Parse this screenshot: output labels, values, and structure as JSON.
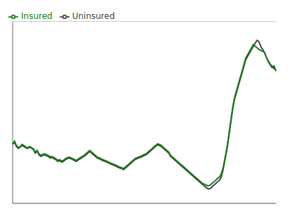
{
  "chart_data": {
    "type": "line",
    "ylim": [
      1.5,
      7.0
    ],
    "yticks": [
      1.5,
      2.2857142857142856,
      3.0714285714285716,
      3.857142857142857,
      4.642857142857143,
      5.428571428571429,
      6.214285714285714,
      7.0
    ],
    "grid": true,
    "legend": "upper left",
    "tick_labels": false,
    "series": [
      {
        "name": "Uninsured",
        "color": "#444444",
        "line_style": "solid",
        "values": [
          3.28,
          3.35,
          3.22,
          3.16,
          3.2,
          3.25,
          3.22,
          3.18,
          3.16,
          3.2,
          3.17,
          3.13,
          3.02,
          3.08,
          2.97,
          2.92,
          2.95,
          2.97,
          2.94,
          2.92,
          2.87,
          2.89,
          2.85,
          2.82,
          2.77,
          2.79,
          2.75,
          2.77,
          2.82,
          2.85,
          2.87,
          2.85,
          2.82,
          2.79,
          2.77,
          2.82,
          2.85,
          2.89,
          2.92,
          2.97,
          3.02,
          3.07,
          3.02,
          2.97,
          2.92,
          2.87,
          2.85,
          2.82,
          2.79,
          2.77,
          2.75,
          2.72,
          2.69,
          2.67,
          2.65,
          2.62,
          2.59,
          2.57,
          2.55,
          2.52,
          2.57,
          2.62,
          2.67,
          2.72,
          2.77,
          2.82,
          2.85,
          2.87,
          2.89,
          2.92,
          2.95,
          2.97,
          3.02,
          3.07,
          3.12,
          3.17,
          3.22,
          3.27,
          3.25,
          3.22,
          3.17,
          3.12,
          3.07,
          3.02,
          2.92,
          2.87,
          2.82,
          2.77,
          2.72,
          2.67,
          2.62,
          2.57,
          2.52,
          2.47,
          2.42,
          2.37,
          2.32,
          2.27,
          2.22,
          2.17,
          2.12,
          2.07,
          2.02,
          1.98,
          1.93,
          1.95,
          2.0,
          2.05,
          2.1,
          2.15,
          2.2,
          2.3,
          2.55,
          2.85,
          3.15,
          3.55,
          3.95,
          4.35,
          4.65,
          4.85,
          5.05,
          5.25,
          5.45,
          5.65,
          5.85,
          5.95,
          6.05,
          6.15,
          6.25,
          6.35,
          6.43,
          6.38,
          6.23,
          6.15,
          6.05,
          5.9,
          5.78,
          5.68,
          5.6,
          5.65,
          5.5
        ]
      },
      {
        "name": "Insured",
        "color": "#1a7a1a",
        "line_style": "solid",
        "values": [
          3.3,
          3.38,
          3.25,
          3.18,
          3.22,
          3.28,
          3.25,
          3.2,
          3.18,
          3.22,
          3.19,
          3.15,
          3.05,
          3.1,
          3.0,
          2.95,
          2.98,
          3.0,
          2.97,
          2.95,
          2.9,
          2.92,
          2.88,
          2.85,
          2.8,
          2.82,
          2.78,
          2.8,
          2.85,
          2.88,
          2.9,
          2.88,
          2.85,
          2.82,
          2.8,
          2.85,
          2.88,
          2.92,
          2.95,
          3.0,
          3.05,
          3.1,
          3.05,
          3.0,
          2.95,
          2.9,
          2.88,
          2.85,
          2.82,
          2.8,
          2.78,
          2.75,
          2.72,
          2.7,
          2.68,
          2.65,
          2.62,
          2.6,
          2.58,
          2.55,
          2.6,
          2.65,
          2.7,
          2.75,
          2.8,
          2.85,
          2.88,
          2.9,
          2.92,
          2.95,
          2.98,
          3.0,
          3.05,
          3.1,
          3.15,
          3.2,
          3.25,
          3.3,
          3.28,
          3.25,
          3.2,
          3.15,
          3.1,
          3.05,
          2.95,
          2.9,
          2.85,
          2.8,
          2.75,
          2.7,
          2.65,
          2.6,
          2.55,
          2.5,
          2.45,
          2.4,
          2.35,
          2.3,
          2.25,
          2.2,
          2.15,
          2.1,
          2.08,
          2.05,
          2.03,
          2.05,
          2.1,
          2.15,
          2.2,
          2.25,
          2.3,
          2.4,
          2.6,
          2.9,
          3.2,
          3.6,
          4.0,
          4.4,
          4.7,
          4.9,
          5.1,
          5.3,
          5.5,
          5.7,
          5.9,
          6.0,
          6.1,
          6.2,
          6.3,
          6.25,
          6.2,
          6.15,
          6.12,
          6.1,
          6.05,
          5.9,
          5.8,
          5.7,
          5.65,
          5.57,
          5.54
        ]
      }
    ]
  }
}
